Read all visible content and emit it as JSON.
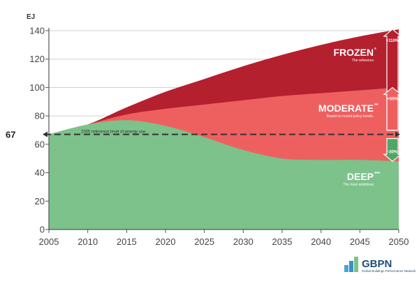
{
  "chart_data": {
    "type": "area",
    "unit_label": "EJ",
    "x": [
      2005,
      2010,
      2015,
      2020,
      2025,
      2030,
      2035,
      2040,
      2045,
      2050
    ],
    "ylim": [
      0,
      140
    ],
    "xlim": [
      2005,
      2050
    ],
    "yticks": [
      0,
      20,
      40,
      60,
      80,
      100,
      120,
      140
    ],
    "xticks": [
      2005,
      2010,
      2015,
      2020,
      2025,
      2030,
      2035,
      2040,
      2045,
      2050
    ],
    "grid": "horizontal",
    "series": [
      {
        "name": "FROZEN",
        "superscript": "*",
        "subtitle": "The reference",
        "color": "#b5202e",
        "values": [
          67,
          74,
          86,
          97,
          106,
          115,
          123,
          130,
          136,
          141
        ]
      },
      {
        "name": "MODERATE",
        "superscript": "**",
        "subtitle": "Based on recent policy trends.",
        "color": "#ee6060",
        "values": [
          67,
          74,
          81,
          85,
          88,
          91,
          94,
          96,
          98,
          100
        ]
      },
      {
        "name": "DEEP",
        "superscript": "***",
        "subtitle": "The most ambitious",
        "color": "#7cc28a",
        "values": [
          67,
          74,
          77,
          73,
          65,
          56,
          50,
          49,
          49,
          48
        ]
      }
    ],
    "reference_line": {
      "value": 67,
      "value_label": "67",
      "label": "2005 reference level of energy use"
    },
    "change_arrows": [
      {
        "label": "+110%",
        "from": 67,
        "to": 141,
        "color": "#b5202e"
      },
      {
        "label": "+50%",
        "from": 67,
        "to": 100,
        "color": "#ee6060"
      },
      {
        "label": "-30%",
        "from": 67,
        "to": 48,
        "color": "#4ea865"
      }
    ]
  },
  "logo": {
    "name": "GBPN",
    "subtitle": "Global Buildings Performance Network"
  },
  "colors": {
    "frozen": "#b5202e",
    "moderate": "#ee6060",
    "deep": "#7cc28a",
    "axis": "#555555",
    "grid": "#d0d0d0"
  }
}
